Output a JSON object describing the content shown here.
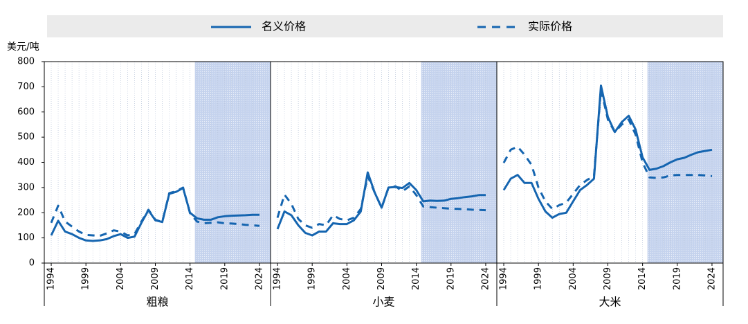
{
  "chart_data": [
    {
      "type": "line",
      "title": "粗粮",
      "ylabel": "美元/吨",
      "x": [
        1994,
        1995,
        1996,
        1997,
        1998,
        1999,
        2000,
        2001,
        2002,
        2003,
        2004,
        2005,
        2006,
        2007,
        2008,
        2009,
        2010,
        2011,
        2012,
        2013,
        2014,
        2015,
        2016,
        2017,
        2018,
        2019,
        2020,
        2021,
        2022,
        2023,
        2024
      ],
      "xlim": [
        1993,
        2025.6
      ],
      "xticks": [
        1994,
        1999,
        2004,
        2009,
        2014,
        2019,
        2024
      ],
      "ylim": [
        0,
        800
      ],
      "yticks": [
        0,
        100,
        200,
        300,
        400,
        500,
        600,
        700,
        800
      ],
      "shaded_from": 2014.7,
      "shade_color": "#c5d3ee",
      "series": [
        {
          "name": "名义价格",
          "color": "#1565b0",
          "dashed": false,
          "values": [
            110,
            168,
            125,
            115,
            100,
            90,
            88,
            90,
            95,
            107,
            115,
            100,
            105,
            160,
            210,
            170,
            163,
            275,
            283,
            298,
            200,
            178,
            172,
            172,
            182,
            186,
            188,
            189,
            190,
            192,
            192
          ]
        },
        {
          "name": "实际价格",
          "color": "#1565b0",
          "dashed": true,
          "values": [
            160,
            228,
            165,
            145,
            125,
            112,
            110,
            108,
            118,
            130,
            125,
            110,
            115,
            165,
            212,
            172,
            163,
            278,
            285,
            300,
            198,
            165,
            158,
            160,
            162,
            158,
            157,
            155,
            152,
            150,
            148
          ]
        }
      ]
    },
    {
      "type": "line",
      "title": "小麦",
      "x": [
        1994,
        1995,
        1996,
        1997,
        1998,
        1999,
        2000,
        2001,
        2002,
        2003,
        2004,
        2005,
        2006,
        2007,
        2008,
        2009,
        2010,
        2011,
        2012,
        2013,
        2014,
        2015,
        2016,
        2017,
        2018,
        2019,
        2020,
        2021,
        2022,
        2023,
        2024
      ],
      "xlim": [
        1993,
        2025.6
      ],
      "xticks": [
        1994,
        1999,
        2004,
        2009,
        2014,
        2019,
        2024
      ],
      "ylim": [
        0,
        800
      ],
      "shaded_from": 2014.7,
      "shade_color": "#c5d3ee",
      "series": [
        {
          "color": "#1565b0",
          "dashed": false,
          "values": [
            135,
            205,
            190,
            150,
            120,
            110,
            125,
            125,
            158,
            155,
            155,
            170,
            205,
            360,
            280,
            220,
            300,
            302,
            298,
            318,
            290,
            245,
            248,
            247,
            248,
            255,
            258,
            262,
            265,
            270,
            270
          ]
        },
        {
          "color": "#1565b0",
          "dashed": true,
          "values": [
            180,
            272,
            235,
            175,
            150,
            140,
            155,
            150,
            190,
            175,
            170,
            180,
            215,
            345,
            280,
            220,
            300,
            305,
            285,
            305,
            270,
            225,
            222,
            220,
            218,
            216,
            215,
            214,
            212,
            211,
            210
          ]
        }
      ]
    },
    {
      "type": "line",
      "title": "大米",
      "x": [
        1994,
        1995,
        1996,
        1997,
        1998,
        1999,
        2000,
        2001,
        2002,
        2003,
        2004,
        2005,
        2006,
        2007,
        2008,
        2009,
        2010,
        2011,
        2012,
        2013,
        2014,
        2015,
        2016,
        2017,
        2018,
        2019,
        2020,
        2021,
        2022,
        2023,
        2024
      ],
      "xlim": [
        1993,
        2025.6
      ],
      "xticks": [
        1994,
        1999,
        2004,
        2009,
        2014,
        2019,
        2024
      ],
      "ylim": [
        0,
        800
      ],
      "shaded_from": 2014.7,
      "shade_color": "#c5d3ee",
      "series": [
        {
          "color": "#1565b0",
          "dashed": false,
          "values": [
            290,
            335,
            350,
            318,
            318,
            255,
            205,
            180,
            195,
            200,
            245,
            290,
            310,
            335,
            705,
            580,
            520,
            560,
            585,
            530,
            420,
            370,
            375,
            385,
            400,
            412,
            418,
            430,
            440,
            445,
            450
          ]
        },
        {
          "color": "#1565b0",
          "dashed": true,
          "values": [
            398,
            450,
            462,
            430,
            390,
            300,
            245,
            215,
            230,
            240,
            275,
            310,
            330,
            345,
            690,
            570,
            520,
            550,
            570,
            510,
            400,
            340,
            338,
            340,
            348,
            350,
            350,
            350,
            350,
            348,
            345
          ]
        }
      ]
    }
  ]
}
